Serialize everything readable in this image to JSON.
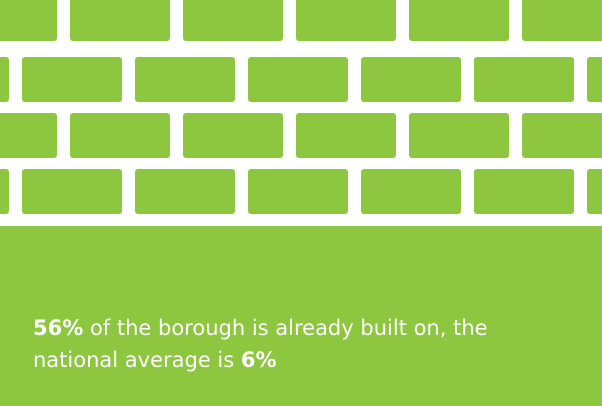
{
  "statement": {
    "lead_figure": "56%",
    "middle_text": " of the borough is already built on, the national average is ",
    "end_figure": "6%"
  }
}
